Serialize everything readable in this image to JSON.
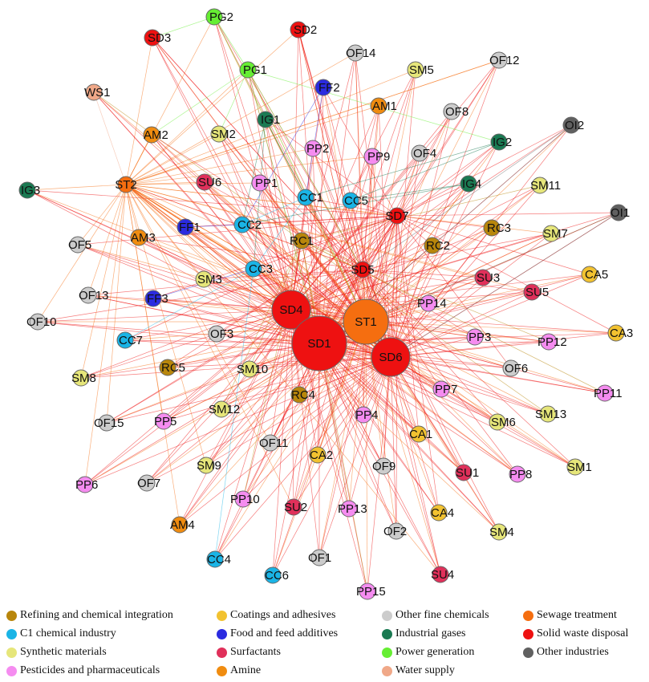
{
  "categories": [
    {
      "key": "refining",
      "label": "Refining and chemical integration",
      "color": "#b8860b"
    },
    {
      "key": "c1",
      "label": "C1 chemical industry",
      "color": "#1ab4e6"
    },
    {
      "key": "synthetic",
      "label": "Synthetic materials",
      "color": "#e6e67a"
    },
    {
      "key": "pesticides",
      "label": "Pesticides and pharmaceuticals",
      "color": "#f58cf0"
    },
    {
      "key": "coatings",
      "label": "Coatings and adhesives",
      "color": "#f2c230"
    },
    {
      "key": "food",
      "label": "Food and feed additives",
      "color": "#2b2be0"
    },
    {
      "key": "surfactants",
      "label": "Surfactants",
      "color": "#e0305a"
    },
    {
      "key": "amine",
      "label": "Amine",
      "color": "#f08c10"
    },
    {
      "key": "finechem",
      "label": "Other fine chemicals",
      "color": "#cccccc"
    },
    {
      "key": "gases",
      "label": "Industrial gases",
      "color": "#1a7a52"
    },
    {
      "key": "power",
      "label": "Power generation",
      "color": "#66ee33"
    },
    {
      "key": "water",
      "label": "Water supply",
      "color": "#f0a888"
    },
    {
      "key": "sewage",
      "label": "Sewage treatment",
      "color": "#f56e10"
    },
    {
      "key": "solidwaste",
      "label": "Solid waste disposal",
      "color": "#ee1111"
    },
    {
      "key": "other",
      "label": "Other industries",
      "color": "#606060"
    }
  ],
  "hubs": [
    "SD1",
    "ST1",
    "SD4",
    "SD6",
    "SD5",
    "SD7",
    "RC1",
    "ST2"
  ],
  "nodes": [
    {
      "id": "SD1",
      "cat": "solidwaste",
      "big": 3
    },
    {
      "id": "ST1",
      "cat": "sewage",
      "big": 2
    },
    {
      "id": "SD4",
      "cat": "solidwaste",
      "big": 1
    },
    {
      "id": "SD6",
      "cat": "solidwaste",
      "big": 1
    },
    {
      "id": "SD5",
      "cat": "solidwaste",
      "big": 0
    },
    {
      "id": "SD7",
      "cat": "solidwaste",
      "big": 0
    },
    {
      "id": "SD2",
      "cat": "solidwaste",
      "big": 0
    },
    {
      "id": "SD3",
      "cat": "solidwaste",
      "big": 0
    },
    {
      "id": "ST2",
      "cat": "sewage",
      "big": 0
    },
    {
      "id": "PG2",
      "cat": "power",
      "big": 0
    },
    {
      "id": "PG1",
      "cat": "power",
      "big": 0
    },
    {
      "id": "WS1",
      "cat": "water",
      "big": 0
    },
    {
      "id": "OF14",
      "cat": "finechem",
      "big": 0
    },
    {
      "id": "SM5",
      "cat": "synthetic",
      "big": 0
    },
    {
      "id": "OF12",
      "cat": "finechem",
      "big": 0
    },
    {
      "id": "FF2",
      "cat": "food",
      "big": 0
    },
    {
      "id": "AM1",
      "cat": "amine",
      "big": 0
    },
    {
      "id": "OF8",
      "cat": "finechem",
      "big": 0
    },
    {
      "id": "IG1",
      "cat": "gases",
      "big": 0
    },
    {
      "id": "AM2",
      "cat": "amine",
      "big": 0
    },
    {
      "id": "SM2",
      "cat": "synthetic",
      "big": 0
    },
    {
      "id": "PP2",
      "cat": "pesticides",
      "big": 0
    },
    {
      "id": "OF4",
      "cat": "finechem",
      "big": 0
    },
    {
      "id": "IG2",
      "cat": "gases",
      "big": 0
    },
    {
      "id": "OI2",
      "cat": "other",
      "big": 0
    },
    {
      "id": "PP9",
      "cat": "pesticides",
      "big": 0
    },
    {
      "id": "IG3",
      "cat": "gases",
      "big": 0
    },
    {
      "id": "SU6",
      "cat": "surfactants",
      "big": 0
    },
    {
      "id": "PP1",
      "cat": "pesticides",
      "big": 0
    },
    {
      "id": "CC1",
      "cat": "c1",
      "big": 0
    },
    {
      "id": "CC5",
      "cat": "c1",
      "big": 0
    },
    {
      "id": "IG4",
      "cat": "gases",
      "big": 0
    },
    {
      "id": "SM11",
      "cat": "synthetic",
      "big": 0
    },
    {
      "id": "OI1",
      "cat": "other",
      "big": 0
    },
    {
      "id": "FF1",
      "cat": "food",
      "big": 0
    },
    {
      "id": "CC2",
      "cat": "c1",
      "big": 0
    },
    {
      "id": "RC3",
      "cat": "refining",
      "big": 0
    },
    {
      "id": "SM7",
      "cat": "synthetic",
      "big": 0
    },
    {
      "id": "OF5",
      "cat": "finechem",
      "big": 0
    },
    {
      "id": "AM3",
      "cat": "amine",
      "big": 0
    },
    {
      "id": "RC1",
      "cat": "refining",
      "big": 0
    },
    {
      "id": "RC2",
      "cat": "refining",
      "big": 0
    },
    {
      "id": "CC3",
      "cat": "c1",
      "big": 0
    },
    {
      "id": "CA5",
      "cat": "coatings",
      "big": 0
    },
    {
      "id": "SM3",
      "cat": "synthetic",
      "big": 0
    },
    {
      "id": "SU3",
      "cat": "surfactants",
      "big": 0
    },
    {
      "id": "OF13",
      "cat": "finechem",
      "big": 0
    },
    {
      "id": "FF3",
      "cat": "food",
      "big": 0
    },
    {
      "id": "SU5",
      "cat": "surfactants",
      "big": 0
    },
    {
      "id": "PP14",
      "cat": "pesticides",
      "big": 0
    },
    {
      "id": "OF10",
      "cat": "finechem",
      "big": 0
    },
    {
      "id": "CA3",
      "cat": "coatings",
      "big": 0
    },
    {
      "id": "CC7",
      "cat": "c1",
      "big": 0
    },
    {
      "id": "OF3",
      "cat": "finechem",
      "big": 0
    },
    {
      "id": "PP3",
      "cat": "pesticides",
      "big": 0
    },
    {
      "id": "PP12",
      "cat": "pesticides",
      "big": 0
    },
    {
      "id": "RC5",
      "cat": "refining",
      "big": 0
    },
    {
      "id": "SM10",
      "cat": "synthetic",
      "big": 0
    },
    {
      "id": "OF6",
      "cat": "finechem",
      "big": 0
    },
    {
      "id": "SM8",
      "cat": "synthetic",
      "big": 0
    },
    {
      "id": "PP11",
      "cat": "pesticides",
      "big": 0
    },
    {
      "id": "RC4",
      "cat": "refining",
      "big": 0
    },
    {
      "id": "PP7",
      "cat": "pesticides",
      "big": 0
    },
    {
      "id": "OF15",
      "cat": "finechem",
      "big": 0
    },
    {
      "id": "PP5",
      "cat": "pesticides",
      "big": 0
    },
    {
      "id": "SM12",
      "cat": "synthetic",
      "big": 0
    },
    {
      "id": "PP4",
      "cat": "pesticides",
      "big": 0
    },
    {
      "id": "SM13",
      "cat": "synthetic",
      "big": 0
    },
    {
      "id": "SM6",
      "cat": "synthetic",
      "big": 0
    },
    {
      "id": "CA1",
      "cat": "coatings",
      "big": 0
    },
    {
      "id": "OF11",
      "cat": "finechem",
      "big": 0
    },
    {
      "id": "CA2",
      "cat": "coatings",
      "big": 0
    },
    {
      "id": "SM9",
      "cat": "synthetic",
      "big": 0
    },
    {
      "id": "OF9",
      "cat": "finechem",
      "big": 0
    },
    {
      "id": "SU1",
      "cat": "surfactants",
      "big": 0
    },
    {
      "id": "SM1",
      "cat": "synthetic",
      "big": 0
    },
    {
      "id": "PP6",
      "cat": "pesticides",
      "big": 0
    },
    {
      "id": "OF7",
      "cat": "finechem",
      "big": 0
    },
    {
      "id": "PP8",
      "cat": "pesticides",
      "big": 0
    },
    {
      "id": "PP10",
      "cat": "pesticides",
      "big": 0
    },
    {
      "id": "SU2",
      "cat": "surfactants",
      "big": 0
    },
    {
      "id": "PP13",
      "cat": "pesticides",
      "big": 0
    },
    {
      "id": "CA4",
      "cat": "coatings",
      "big": 0
    },
    {
      "id": "AM4",
      "cat": "amine",
      "big": 0
    },
    {
      "id": "OF2",
      "cat": "finechem",
      "big": 0
    },
    {
      "id": "SM4",
      "cat": "synthetic",
      "big": 0
    },
    {
      "id": "CC4",
      "cat": "c1",
      "big": 0
    },
    {
      "id": "OF1",
      "cat": "finechem",
      "big": 0
    },
    {
      "id": "CC6",
      "cat": "c1",
      "big": 0
    },
    {
      "id": "SU4",
      "cat": "surfactants",
      "big": 0
    },
    {
      "id": "PP15",
      "cat": "pesticides",
      "big": 0
    }
  ],
  "links": [
    [
      "PG2",
      "PG1"
    ],
    [
      "PG2",
      "SD3"
    ],
    [
      "PG2",
      "CC1"
    ],
    [
      "PG1",
      "SM2"
    ],
    [
      "PG1",
      "AM2"
    ],
    [
      "PG1",
      "ST1"
    ],
    [
      "PG1",
      "SD1"
    ],
    [
      "PG1",
      "IG2"
    ],
    [
      "PG1",
      "SD5"
    ],
    [
      "SD3",
      "SD5"
    ],
    [
      "SD2",
      "SD5"
    ],
    [
      "SD2",
      "ST1"
    ],
    [
      "WS1",
      "ST2"
    ],
    [
      "ST2",
      "IG3"
    ],
    [
      "ST2",
      "SD1"
    ],
    [
      "ST2",
      "SD4"
    ],
    [
      "ST2",
      "ST1"
    ],
    [
      "ST2",
      "SD6"
    ],
    [
      "ST2",
      "OF12"
    ],
    [
      "ST2",
      "AM2"
    ],
    [
      "ST2",
      "OF5"
    ],
    [
      "IG1",
      "CC1"
    ],
    [
      "IG1",
      "CC2"
    ],
    [
      "IG1",
      "CC3"
    ],
    [
      "FF2",
      "CC1"
    ],
    [
      "FF2",
      "CC2"
    ],
    [
      "IG2",
      "CC1"
    ],
    [
      "IG2",
      "CC5"
    ],
    [
      "IG4",
      "CC2"
    ],
    [
      "IG4",
      "CC5"
    ],
    [
      "CC2",
      "CC1"
    ],
    [
      "CC3",
      "CC1"
    ],
    [
      "FF1",
      "CC2"
    ],
    [
      "FF3",
      "CC3"
    ],
    [
      "CC7",
      "CC3"
    ],
    [
      "CC4",
      "CC3"
    ],
    [
      "OI2",
      "SD1"
    ],
    [
      "OI2",
      "SD5"
    ],
    [
      "OI1",
      "ST1"
    ],
    [
      "OI1",
      "SD6"
    ]
  ]
}
